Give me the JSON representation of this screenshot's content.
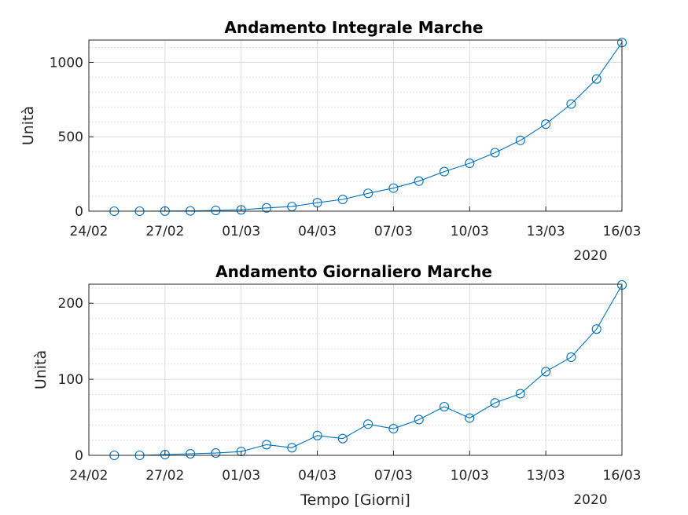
{
  "chart_data": [
    {
      "type": "line",
      "title": "Andamento Integrale Marche",
      "ylabel": "Unità",
      "xlabel": "",
      "year_label": "2020",
      "ylim": [
        0,
        1150
      ],
      "yticks": [
        0,
        500,
        1000
      ],
      "xlim": [
        "24/02",
        "16/03"
      ],
      "xticks": [
        "24/02",
        "27/02",
        "01/03",
        "04/03",
        "07/03",
        "10/03",
        "13/03",
        "16/03"
      ],
      "grid": true,
      "marker": "circle",
      "color": "#0072bd",
      "x": [
        "25/02",
        "26/02",
        "27/02",
        "28/02",
        "29/02",
        "01/03",
        "02/03",
        "03/03",
        "04/03",
        "05/03",
        "06/03",
        "07/03",
        "08/03",
        "09/03",
        "10/03",
        "11/03",
        "12/03",
        "13/03",
        "14/03",
        "15/03",
        "16/03"
      ],
      "values": [
        0,
        0,
        1,
        2,
        5,
        9,
        22,
        31,
        57,
        79,
        120,
        155,
        202,
        266,
        322,
        393,
        476,
        585,
        720,
        888,
        1133
      ]
    },
    {
      "type": "line",
      "title": "Andamento Giornaliero Marche",
      "ylabel": "Unità",
      "xlabel": "Tempo [Giorni]",
      "year_label": "2020",
      "ylim": [
        0,
        225
      ],
      "yticks": [
        0,
        100,
        200
      ],
      "xlim": [
        "24/02",
        "16/03"
      ],
      "xticks": [
        "24/02",
        "27/02",
        "01/03",
        "04/03",
        "07/03",
        "10/03",
        "13/03",
        "16/03"
      ],
      "grid": true,
      "marker": "circle",
      "color": "#0072bd",
      "x": [
        "25/02",
        "26/02",
        "27/02",
        "28/02",
        "29/02",
        "01/03",
        "02/03",
        "03/03",
        "04/03",
        "05/03",
        "06/03",
        "07/03",
        "08/03",
        "09/03",
        "10/03",
        "11/03",
        "12/03",
        "13/03",
        "14/03",
        "15/03",
        "16/03"
      ],
      "values": [
        0,
        0,
        1,
        2,
        3,
        5,
        14,
        10,
        26,
        22,
        41,
        35,
        47,
        64,
        49,
        69,
        81,
        110,
        129,
        166,
        224
      ]
    }
  ]
}
